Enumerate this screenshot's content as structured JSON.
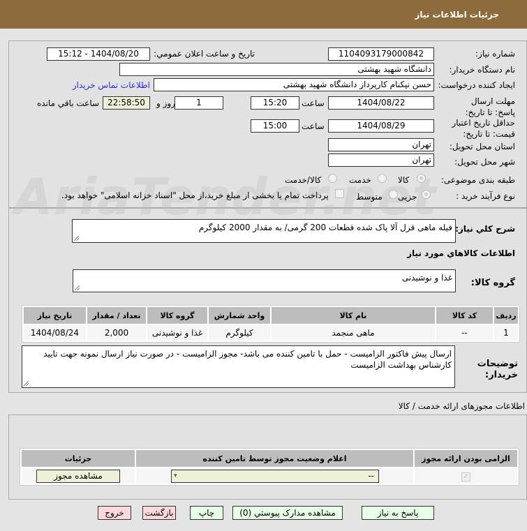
{
  "header": {
    "title": "جزئیات اطلاعات نیاز"
  },
  "watermark": "AriaTender.net",
  "form": {
    "need_number_label": "شماره نیاز:",
    "need_number": "1104093179000842",
    "announce_label": "تاریخ و ساعت اعلان عمومي:",
    "announce_value": "1404/08/20 - 15:12",
    "buyer_label": "نام دستگاه خريدار:",
    "buyer": "دانشگاه شهید بهشتی",
    "creator_label": "ايجاد کننده درخواست:",
    "creator": "حسن نیکنام کارپرداز دانشگاه شهید بهشتی",
    "contact_link": "اطلاعات تماس خريدار",
    "deadline_label": "مهلت ارسال پاسخ: تا تاريخ:",
    "deadline_date": "1404/08/22",
    "time_label": "ساعت",
    "deadline_time": "15:20",
    "days": "1",
    "days_label": "روز و",
    "remaining": "22:58:50",
    "remaining_label": "ساعت باقي مانده",
    "validity_label": "حداقل تاريخ اعتبار قيمت: تا تاريخ:",
    "validity_date": "1404/08/29",
    "validity_time": "15:00",
    "province_label": "استان محل تحویل:",
    "province": "تهران",
    "city_label": "شهر محل تحویل:",
    "city": "تهران",
    "category_label": "طبقه بندی موضوعی:",
    "category_options": [
      "کالا",
      "خدمت",
      "کالا/خدمت"
    ],
    "category_selected": "کالا",
    "process_label": "نوع فرآیند خرید :",
    "process_options": [
      "جزیی",
      "متوسط"
    ],
    "process_selected": "جزیی",
    "payment_note": "پرداخت تمام یا بخشی از مبلغ خرید،از محل \"اسناد خزانه اسلامی\" خواهد بود.",
    "description_label": "شرح کلي نياز:",
    "description": "فیله ماهی قزل آلا پاک شده قطعات 200 گرمی/ به مقدار 2000 کیلوگرم"
  },
  "goods": {
    "section_title": "اطلاعات کالاهاي مورد نياز",
    "group_label": "گروه کالا:",
    "group": "غذا و نوشیدنی",
    "columns": [
      "رديف",
      "کد کالا",
      "نام کالا",
      "واحد شمارش",
      "گروه کالا",
      "تعداد / مقدار",
      "تاریخ نیاز"
    ],
    "rows": [
      [
        "1",
        "--",
        "ماهی منجمد",
        "کیلوگرم",
        "غذا و نوشیدنی",
        "2,000",
        "1404/08/24"
      ]
    ],
    "notes_label": "توضيحات خريدار:",
    "notes": "ارسال پیش فاکتور الزامیست - حمل با تامین کننده می باشد- مجوز الزامیست - در صورت نیاز ارسال نمونه جهت تایید کارشناس بهداشت الزامیست"
  },
  "permits": {
    "section_title": "اطلاعات مجوزهای ارائه خدمت / کالا",
    "columns": [
      "الزامی بودن ارائه مجوز",
      "اعلام وضعیت مجوز توسط تامین کننده",
      "جزئیات"
    ],
    "required_checked": true,
    "status_value": "--",
    "details_button": "مشاهده مجوز"
  },
  "buttons": {
    "reply": "پاسخ به نياز",
    "attachments": "مشاهده مدارک پيوستي (0)",
    "print": "چاپ",
    "back": "بازگشت",
    "exit": "خروج"
  }
}
